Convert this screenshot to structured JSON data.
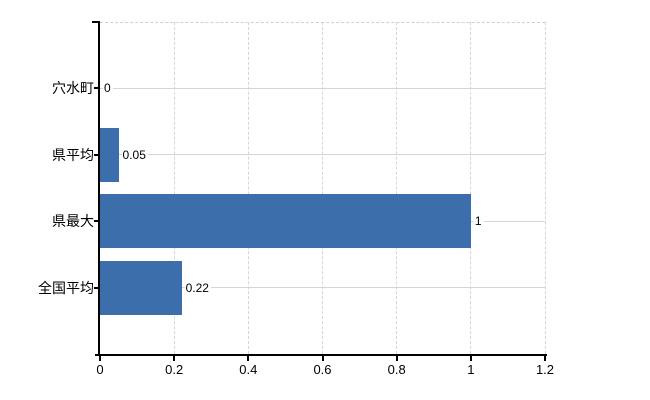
{
  "chart_data": {
    "type": "bar",
    "orientation": "horizontal",
    "title": "",
    "xlabel": "",
    "ylabel": "",
    "categories": [
      "穴水町",
      "県平均",
      "県最大",
      "全国平均"
    ],
    "values": [
      0,
      0.05,
      1,
      0.22
    ],
    "value_labels": [
      "0",
      "0.05",
      "1",
      "0.22"
    ],
    "xlim": [
      0,
      1.2
    ],
    "x_ticks": [
      0,
      0.2,
      0.4,
      0.6,
      0.8,
      1,
      1.2
    ],
    "x_tick_labels": [
      "0",
      "0.2",
      "0.4",
      "0.6",
      "0.8",
      "1",
      "1.2"
    ],
    "grid": {
      "vertical": "dashed",
      "horizontal": "solid",
      "top_border": "dashed"
    },
    "legend": "none",
    "colors": {
      "bar": "#3c6eac",
      "grid": "#d5d5d5",
      "axis": "#000000",
      "text": "#000000",
      "background": "#ffffff"
    }
  }
}
